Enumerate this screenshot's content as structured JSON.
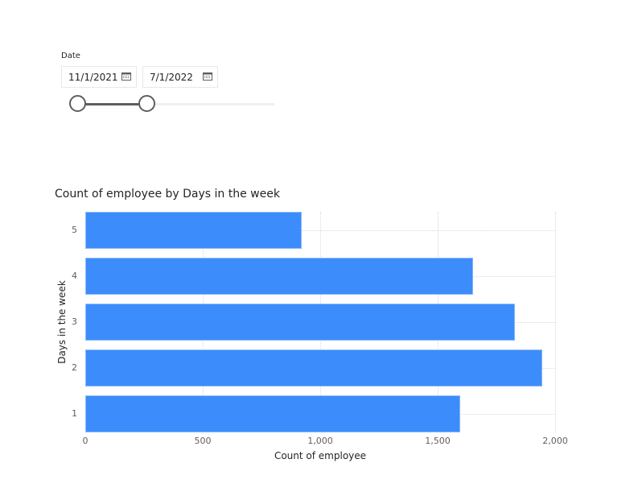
{
  "slicer": {
    "label": "Date",
    "start_date": "11/1/2021",
    "end_date": "7/1/2022",
    "calendar_icon": "calendar-icon",
    "handle_start_pct": 0,
    "handle_end_pct": 35
  },
  "chart": {
    "title": "Count of employee by Days in the week",
    "xlabel": "Count of employee",
    "ylabel": "Days in the week",
    "bar_color": "#3c8cfc",
    "x_ticks": [
      "0",
      "500",
      "1,000",
      "1,500",
      "2,000"
    ],
    "y_ticks": [
      "5",
      "4",
      "3",
      "2",
      "1"
    ]
  },
  "chart_data": {
    "type": "bar",
    "orientation": "horizontal",
    "title": "Count of employee by Days in the week",
    "xlabel": "Count of employee",
    "ylabel": "Days in the week",
    "categories": [
      "5",
      "4",
      "3",
      "2",
      "1"
    ],
    "values": [
      921,
      1651,
      1829,
      1945,
      1596
    ],
    "xlim": [
      0,
      2000
    ],
    "x_ticks": [
      0,
      500,
      1000,
      1500,
      2000
    ],
    "grid": true,
    "legend": "none"
  }
}
